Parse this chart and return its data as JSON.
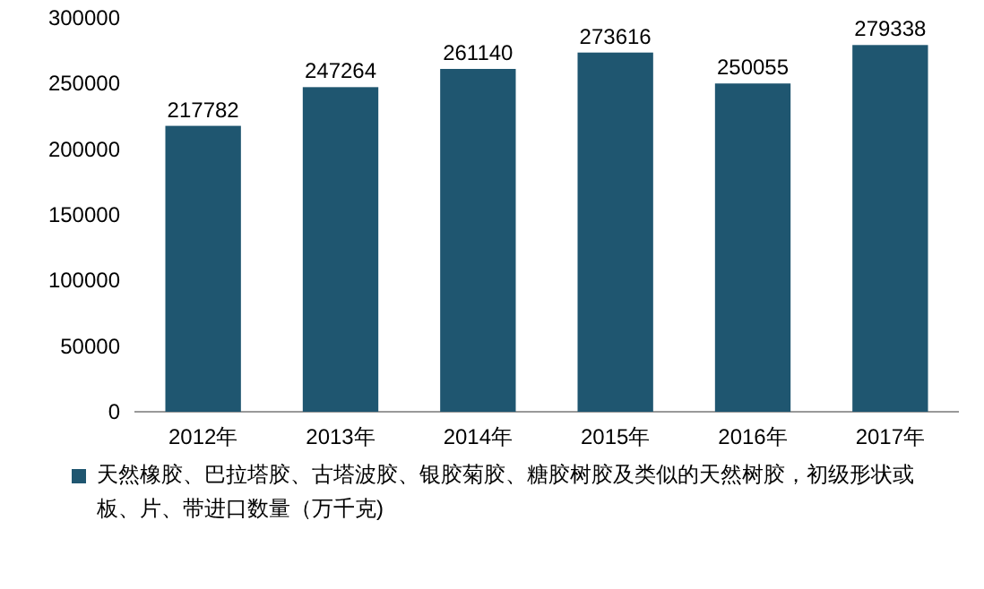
{
  "chart_data": {
    "type": "bar",
    "categories": [
      "2012年",
      "2013年",
      "2014年",
      "2015年",
      "2016年",
      "2017年"
    ],
    "series": [
      {
        "name": "天然橡胶、巴拉塔胶、古塔波胶、银胶菊胶、糖胶树胶及类似的天然树胶，初级形状或板、片、带进口数量（万千克)",
        "color": "#1f5670",
        "values": [
          217782,
          247264,
          261140,
          273616,
          250055,
          279338
        ]
      }
    ],
    "ylim": [
      0,
      300000
    ],
    "yticks": [
      0,
      50000,
      100000,
      150000,
      200000,
      250000,
      300000
    ],
    "data_labels": true,
    "legend": "bottom",
    "grid": false
  }
}
